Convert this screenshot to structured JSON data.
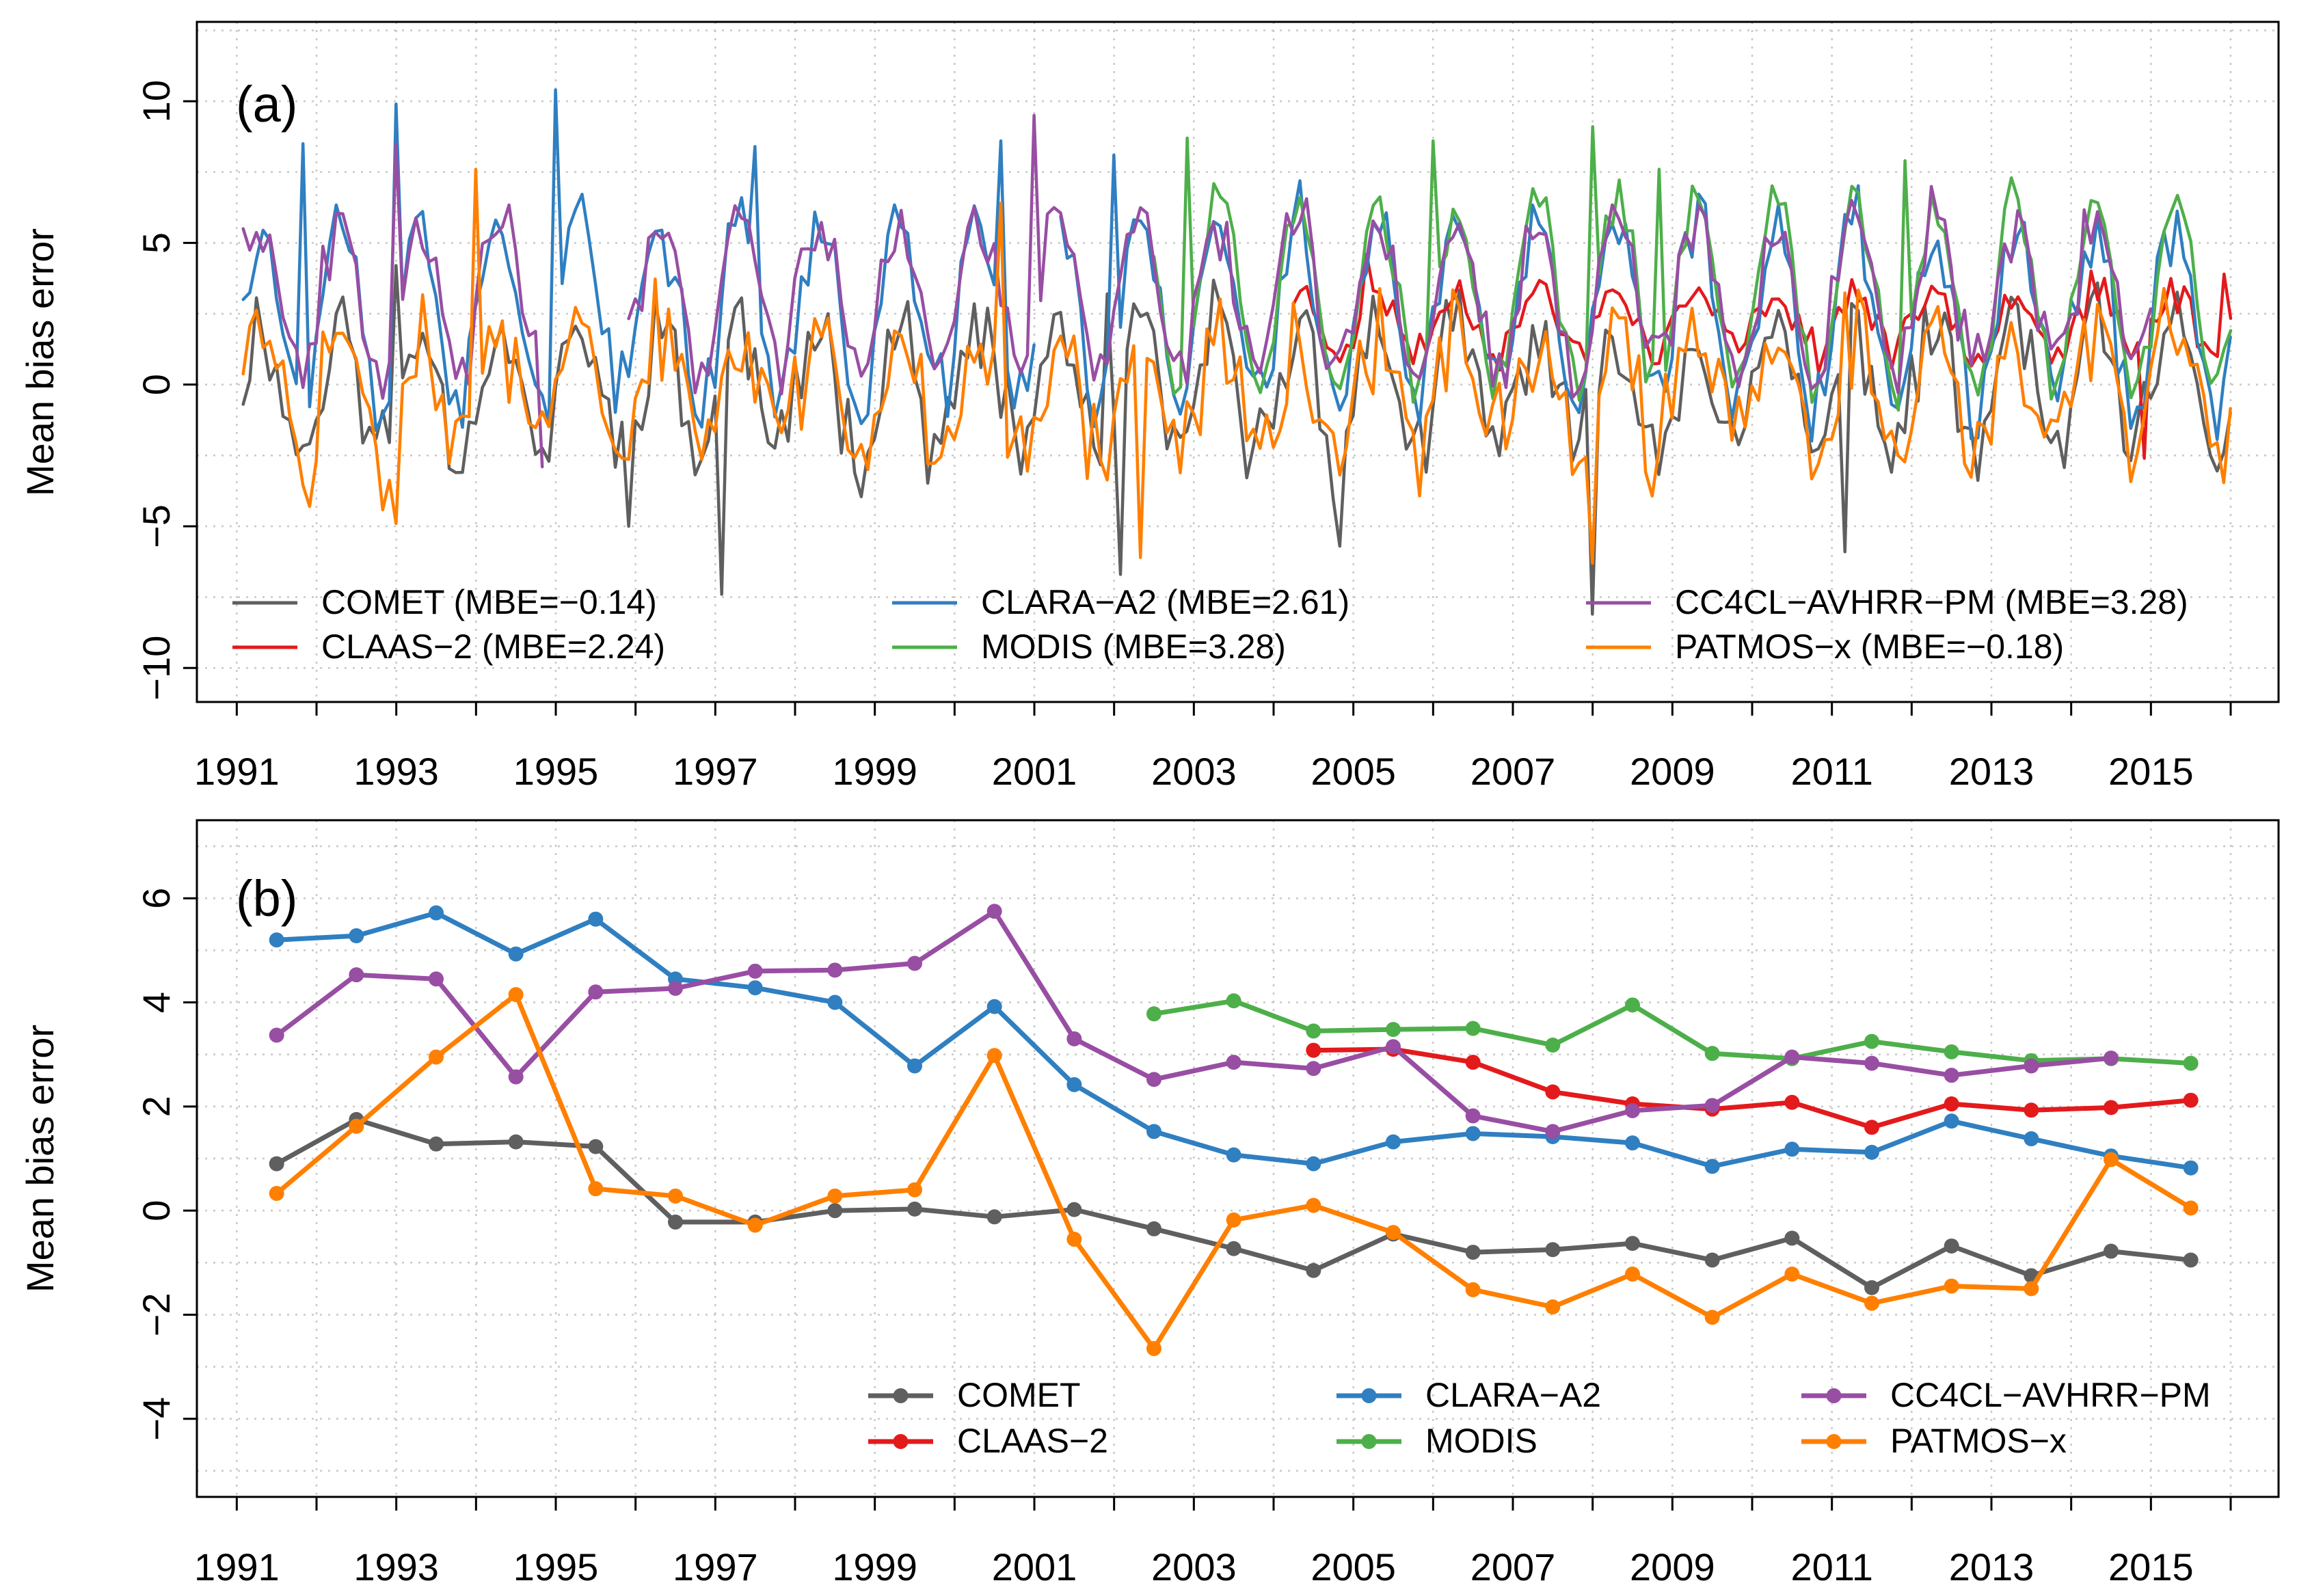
{
  "colors": {
    "COMET": "#5f5f5f",
    "CLAAS-2": "#e31a1c",
    "CLARA-A2": "#2f7fc1",
    "MODIS": "#4daf4a",
    "CC4CL-AVHRR-PM": "#984ea3",
    "PATMOS-x": "#ff7f00"
  },
  "chart_data": [
    {
      "type": "line",
      "panel_label": "(a)",
      "ylabel": "Mean bias error",
      "xlim": [
        1990.5,
        2016.6
      ],
      "ylim": [
        -11.2,
        12.8
      ],
      "x_ticks": [
        1991,
        1993,
        1995,
        1997,
        1999,
        2001,
        2003,
        2005,
        2007,
        2009,
        2011,
        2013,
        2015
      ],
      "x_ticks_minor": [
        1992,
        1994,
        1996,
        1998,
        2000,
        2002,
        2004,
        2006,
        2008,
        2010,
        2012,
        2014,
        2016
      ],
      "y_ticks": [
        -10,
        -5,
        0,
        5,
        10
      ],
      "legend_position": "bottom",
      "legend": [
        {
          "name": "COMET",
          "label": "COMET (MBE=−0.14)"
        },
        {
          "name": "CLAAS-2",
          "label": "CLAAS−2 (MBE=2.24)"
        },
        {
          "name": "CLARA-A2",
          "label": "CLARA−A2 (MBE=2.61)"
        },
        {
          "name": "MODIS",
          "label": "MODIS (MBE=3.28)"
        },
        {
          "name": "CC4CL-AVHRR-PM",
          "label": "CC4CL−AVHRR−PM (MBE=3.28)"
        },
        {
          "name": "PATMOS-x",
          "label": "PATMOS−x (MBE=−0.18)"
        }
      ],
      "series": [
        {
          "name": "COMET",
          "period": [
            1991.08,
            2016.0
          ],
          "mean": -0.14,
          "amplitude": 2.2,
          "noise": 2.0,
          "seed": 11,
          "peaks": [
            [
              1997.1,
              -7.4
            ],
            [
              2002.1,
              -6.7
            ],
            [
              2008.0,
              -8.1
            ],
            [
              2004.8,
              -5.7
            ],
            [
              2011.2,
              -5.9
            ],
            [
              1995.9,
              -5.0
            ],
            [
              1993.0,
              4.2
            ],
            [
              2001.9,
              3.2
            ]
          ]
        },
        {
          "name": "CLAAS-2",
          "period": [
            2004.25,
            2016.0
          ],
          "mean": 2.24,
          "amplitude": 1.0,
          "noise": 0.9,
          "seed": 23,
          "peaks": [
            [
              2014.9,
              -2.6
            ],
            [
              2015.9,
              3.9
            ],
            [
              2005.2,
              4.6
            ]
          ]
        },
        {
          "name": "CLARA-A2",
          "period": [
            1991.08,
            2016.0
          ],
          "mean": 2.61,
          "amplitude": 3.2,
          "noise": 1.8,
          "seed": 37,
          "peaks": [
            [
              1995.0,
              10.4
            ],
            [
              1993.0,
              9.9
            ],
            [
              1991.8,
              8.5
            ],
            [
              1997.5,
              8.4
            ],
            [
              2000.6,
              8.6
            ],
            [
              2002.0,
              8.1
            ]
          ],
          "gaps": [
            [
              2001.0,
              2001.25
            ]
          ]
        },
        {
          "name": "MODIS",
          "period": [
            2002.5,
            2016.0
          ],
          "mean": 3.28,
          "amplitude": 3.4,
          "noise": 1.2,
          "seed": 51,
          "peaks": [
            [
              2008.0,
              9.1
            ],
            [
              2002.9,
              8.7
            ],
            [
              2006.0,
              8.6
            ],
            [
              2008.8,
              7.6
            ],
            [
              2011.9,
              7.9
            ]
          ]
        },
        {
          "name": "CC4CL-AVHRR-PM",
          "period": [
            1991.08,
            2015.0
          ],
          "mean": 3.28,
          "amplitude": 2.6,
          "noise": 1.5,
          "seed": 67,
          "peaks": [
            [
              1993.0,
              8.5
            ],
            [
              2001.0,
              9.5
            ],
            [
              1991.1,
              5.5
            ],
            [
              1994.8,
              -2.9
            ]
          ],
          "gaps": [
            [
              1994.85,
              1995.9
            ]
          ]
        },
        {
          "name": "PATMOS-x",
          "period": [
            1991.08,
            2016.0
          ],
          "mean": -0.18,
          "amplitude": 2.0,
          "noise": 2.4,
          "seed": 83,
          "peaks": [
            [
              1993.0,
              -4.9
            ],
            [
              1991.9,
              -4.3
            ],
            [
              1994.0,
              7.6
            ],
            [
              2000.6,
              6.4
            ],
            [
              2002.3,
              -6.1
            ],
            [
              2008.0,
              -6.3
            ],
            [
              1991.0,
              -0.3
            ]
          ]
        }
      ]
    },
    {
      "type": "line",
      "panel_label": "(b)",
      "ylabel": "Mean bias error",
      "xlim": [
        1990.5,
        2016.6
      ],
      "ylim": [
        -5.5,
        7.5
      ],
      "x_ticks": [
        1991,
        1993,
        1995,
        1997,
        1999,
        2001,
        2003,
        2005,
        2007,
        2009,
        2011,
        2013,
        2015
      ],
      "x_ticks_minor": [
        1992,
        1994,
        1996,
        1998,
        2000,
        2002,
        2004,
        2006,
        2008,
        2010,
        2012,
        2014,
        2016
      ],
      "y_ticks": [
        -4,
        -2,
        0,
        2,
        4,
        6
      ],
      "legend_position": "bottom-right",
      "legend": [
        {
          "name": "COMET",
          "label": "COMET"
        },
        {
          "name": "CLAAS-2",
          "label": "CLAAS−2"
        },
        {
          "name": "CLARA-A2",
          "label": "CLARA−A2"
        },
        {
          "name": "MODIS",
          "label": "MODIS"
        },
        {
          "name": "CC4CL-AVHRR-PM",
          "label": "CC4CL−AVHRR−PM"
        },
        {
          "name": "PATMOS-x",
          "label": "PATMOS−x"
        }
      ],
      "series": [
        {
          "name": "COMET",
          "x": [
            1991.5,
            1992.5,
            1993.5,
            1994.5,
            1995.5,
            1996.5,
            1997.5,
            1998.5,
            1999.5,
            2000.5,
            2001.5,
            2002.5,
            2003.5,
            2004.5,
            2005.5,
            2006.5,
            2007.5,
            2008.5,
            2009.5,
            2010.5,
            2011.5,
            2012.5,
            2013.5,
            2014.5,
            2015.5
          ],
          "y": [
            0.9,
            1.75,
            1.28,
            1.32,
            1.23,
            -0.22,
            -0.22,
            0.0,
            0.03,
            -0.12,
            0.02,
            -0.35,
            -0.73,
            -1.15,
            -0.45,
            -0.8,
            -0.75,
            -0.63,
            -0.95,
            -0.53,
            -1.48,
            -0.68,
            -1.25,
            -0.78,
            -0.95
          ]
        },
        {
          "name": "CLAAS-2",
          "x": [
            2004.5,
            2005.5,
            2006.5,
            2007.5,
            2008.5,
            2009.5,
            2010.5,
            2011.5,
            2012.5,
            2013.5,
            2014.5,
            2015.5
          ],
          "y": [
            3.08,
            3.1,
            2.85,
            2.28,
            2.05,
            1.95,
            2.08,
            1.6,
            2.05,
            1.93,
            1.98,
            2.12
          ]
        },
        {
          "name": "CLARA-A2",
          "x": [
            1991.5,
            1992.5,
            1993.5,
            1994.5,
            1995.5,
            1996.5,
            1997.5,
            1998.5,
            1999.5,
            2000.5,
            2001.5,
            2002.5,
            2003.5,
            2004.5,
            2005.5,
            2006.5,
            2007.5,
            2008.5,
            2009.5,
            2010.5,
            2011.5,
            2012.5,
            2013.5,
            2014.5,
            2015.5
          ],
          "y": [
            5.2,
            5.28,
            5.72,
            4.93,
            5.6,
            4.45,
            4.28,
            4.0,
            2.78,
            3.92,
            2.42,
            1.52,
            1.07,
            0.9,
            1.32,
            1.48,
            1.42,
            1.3,
            0.85,
            1.18,
            1.12,
            1.72,
            1.38,
            1.05,
            0.82
          ]
        },
        {
          "name": "MODIS",
          "x": [
            2002.5,
            2003.5,
            2004.5,
            2005.5,
            2006.5,
            2007.5,
            2008.5,
            2009.5,
            2010.5,
            2011.5,
            2012.5,
            2013.5,
            2014.5,
            2015.5
          ],
          "y": [
            3.78,
            4.03,
            3.45,
            3.48,
            3.5,
            3.18,
            3.95,
            3.02,
            2.92,
            3.25,
            3.05,
            2.88,
            2.92,
            2.83
          ]
        },
        {
          "name": "CC4CL-AVHRR-PM",
          "x": [
            1991.5,
            1992.5,
            1993.5,
            1994.5,
            1995.5,
            1996.5,
            1997.5,
            1998.5,
            1999.5,
            2000.5,
            2001.5,
            2002.5,
            2003.5,
            2004.5,
            2005.5,
            2006.5,
            2007.5,
            2008.5,
            2009.5,
            2010.5,
            2011.5,
            2012.5,
            2013.5,
            2014.5
          ],
          "y": [
            3.37,
            4.53,
            4.45,
            2.57,
            4.2,
            4.27,
            4.6,
            4.62,
            4.75,
            5.75,
            3.3,
            2.52,
            2.85,
            2.73,
            3.15,
            1.82,
            1.52,
            1.92,
            2.02,
            2.95,
            2.83,
            2.6,
            2.78,
            2.93
          ]
        },
        {
          "name": "PATMOS-x",
          "x": [
            1991.5,
            1992.5,
            1993.5,
            1994.5,
            1995.5,
            1996.5,
            1997.5,
            1998.5,
            1999.5,
            2000.5,
            2001.5,
            2002.5,
            2003.5,
            2004.5,
            2005.5,
            2006.5,
            2007.5,
            2008.5,
            2009.5,
            2010.5,
            2011.5,
            2012.5,
            2013.5,
            2014.5,
            2015.5
          ],
          "y": [
            0.33,
            1.62,
            2.95,
            4.15,
            0.42,
            0.28,
            -0.28,
            0.28,
            0.4,
            2.98,
            -0.55,
            -2.65,
            -0.18,
            0.1,
            -0.42,
            -1.52,
            -1.85,
            -1.22,
            -2.05,
            -1.22,
            -1.78,
            -1.45,
            -1.5,
            0.98,
            0.05
          ]
        }
      ]
    }
  ]
}
